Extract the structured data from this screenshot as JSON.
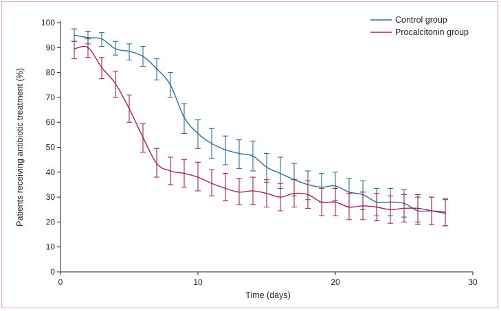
{
  "chart_data": {
    "type": "line",
    "title": "",
    "xlabel": "Time (days)",
    "ylabel": "Patients receiving antibiotic treatment (%)",
    "xlim": [
      0,
      30
    ],
    "ylim": [
      0,
      100
    ],
    "x_ticks": [
      0,
      10,
      20,
      30
    ],
    "y_ticks": [
      0,
      10,
      20,
      30,
      40,
      50,
      60,
      70,
      80,
      90,
      100
    ],
    "legend_position": "top-right",
    "x": [
      1,
      2,
      3,
      4,
      5,
      6,
      7,
      8,
      9,
      10,
      11,
      12,
      13,
      14,
      15,
      16,
      17,
      18,
      19,
      20,
      21,
      22,
      23,
      24,
      25,
      26,
      27,
      28
    ],
    "series": [
      {
        "name": "Control group",
        "color": "#2b6ca3",
        "values": [
          95,
          94,
          93.5,
          89.5,
          88.5,
          86.5,
          81.5,
          75,
          62,
          55.5,
          51.5,
          49,
          47.5,
          46.5,
          42,
          39.5,
          37,
          35,
          34,
          34.5,
          32,
          31,
          28,
          28,
          27.5,
          24.5,
          24.5,
          24
        ],
        "lower": [
          92.5,
          91.5,
          90.5,
          87,
          85,
          82.5,
          77,
          70,
          55.5,
          49.5,
          45.5,
          43,
          41.5,
          40.5,
          36,
          33.5,
          30.5,
          29,
          28,
          28.5,
          26,
          25,
          22.5,
          22.5,
          22,
          19,
          19,
          18.5
        ],
        "upper": [
          97.5,
          96.5,
          96,
          92.5,
          91.5,
          90.5,
          85.5,
          80,
          67.5,
          61,
          57.5,
          54.5,
          53,
          52.5,
          47.5,
          46,
          43.5,
          40.5,
          39.5,
          40,
          37.5,
          36.5,
          33.5,
          33.5,
          33,
          30,
          30,
          29.5
        ]
      },
      {
        "name": "Procalcitonin group",
        "color": "#b0204f",
        "values": [
          89.5,
          90,
          82,
          75.5,
          65.5,
          54,
          43.5,
          40.5,
          39.5,
          38,
          35.5,
          33.5,
          32,
          32.5,
          31.5,
          30,
          31.5,
          31,
          28,
          28,
          26,
          26.5,
          26,
          25,
          25.5,
          25.5,
          24.5,
          23.5
        ],
        "lower": [
          85.5,
          86,
          77.5,
          70,
          60,
          48,
          38,
          35,
          34,
          32.5,
          30.5,
          28.5,
          27,
          27,
          26,
          24.5,
          26,
          25.5,
          22.5,
          22.5,
          21,
          21,
          20.5,
          19.5,
          20,
          20,
          19,
          18.5
        ],
        "upper": [
          92.5,
          93.5,
          86,
          80.5,
          71,
          59.5,
          49.5,
          46,
          45,
          44,
          41,
          39.5,
          37.5,
          38,
          37,
          35.5,
          37,
          36.5,
          33.5,
          33.5,
          31.5,
          32,
          31.5,
          30.5,
          31,
          31,
          30,
          29
        ]
      }
    ]
  }
}
